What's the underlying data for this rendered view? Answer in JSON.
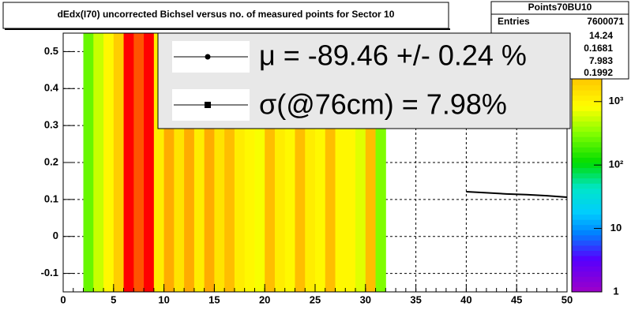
{
  "chart_data": [
    {
      "type": "heatmap",
      "title": "dEdx(I70) uncorrected Bichsel versus no. of measured points for Sector 10",
      "xbins": [
        2,
        3,
        4,
        5,
        6,
        7,
        8,
        9,
        10,
        11,
        12,
        13,
        14,
        15,
        16,
        17,
        18,
        19,
        20,
        21,
        22,
        23,
        24,
        25,
        26,
        27,
        28,
        29,
        30,
        31,
        32
      ],
      "z": [
        250,
        500,
        1000,
        2000,
        10000,
        6000,
        10000,
        1200,
        3000,
        1500,
        3000,
        1200,
        3000,
        1500,
        2500,
        1200,
        1000,
        800,
        2500,
        1200,
        1000,
        2500,
        1200,
        1000,
        2500,
        1000,
        1000,
        700,
        2500,
        300
      ],
      "xlim": [
        0,
        50
      ],
      "ylim": [
        -0.15,
        0.55
      ],
      "xticks": [
        0,
        5,
        10,
        15,
        20,
        25,
        30,
        35,
        40,
        45,
        50
      ],
      "yticks": [
        -0.1,
        0,
        0.1,
        0.2,
        0.3,
        0.4,
        0.5
      ],
      "zlim": [
        1,
        12000
      ],
      "zticks": [
        1,
        10,
        {
          "value": 100,
          "label": "10²"
        },
        {
          "value": 1000,
          "label": "10³"
        }
      ],
      "log_z": true,
      "grid": true
    },
    {
      "type": "line",
      "x": [
        40,
        42,
        44,
        46,
        48,
        50
      ],
      "values": [
        0.121,
        0.118,
        0.115,
        0.113,
        0.11,
        0.106
      ],
      "color": "#000000"
    }
  ],
  "stats": {
    "title": "Points70BU10",
    "entries_label": "Entries",
    "entries": 7600071,
    "values": [
      14.24,
      0.1681,
      7.983,
      0.1992
    ]
  },
  "legend": [
    "μ  = -89.46 +/-  0.24 %",
    "σ(@76cm) =  7.98%"
  ]
}
